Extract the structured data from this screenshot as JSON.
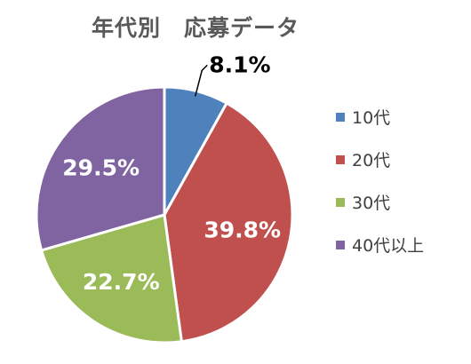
{
  "chart_data": {
    "type": "pie",
    "title": "年代別　応募データ",
    "categories": [
      "10代",
      "20代",
      "30代",
      "40代以上"
    ],
    "values": [
      8.1,
      39.8,
      22.7,
      29.5
    ],
    "labels": [
      "8.1%",
      "39.8%",
      "22.7%",
      "29.5%"
    ],
    "colors": [
      "#4f81bd",
      "#c0504d",
      "#9bbb59",
      "#8064a2"
    ],
    "start_angle": "12 o'clock",
    "direction": "clockwise",
    "legend": "right"
  }
}
